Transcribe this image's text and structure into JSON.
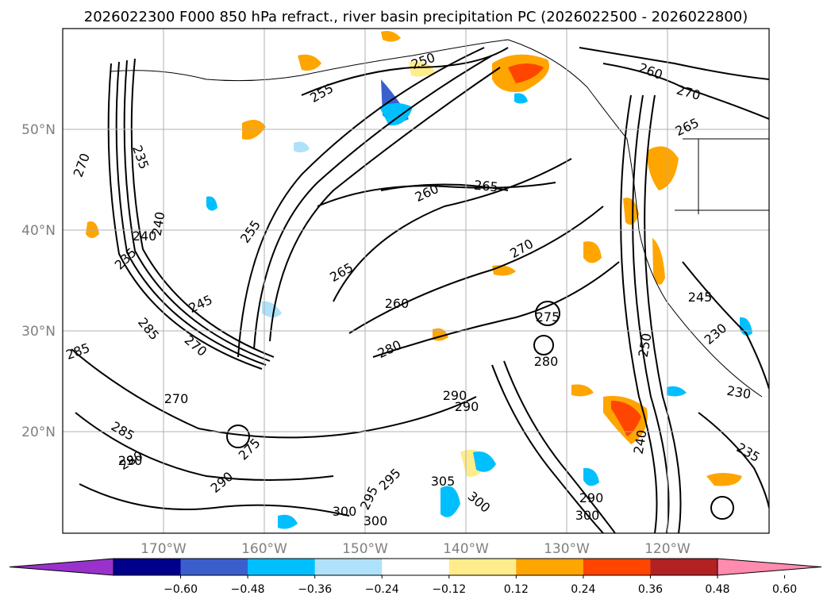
{
  "title": "2026022300 F000 850 hPa refract., river basin precipitation PC (2026022500 - 2026022800)",
  "map": {
    "lat_ticks": [
      "50°N",
      "40°N",
      "30°N",
      "20°N"
    ],
    "lon_ticks": [
      "170°W",
      "160°W",
      "150°W",
      "140°W",
      "130°W",
      "120°W"
    ],
    "grid": true,
    "contour_labels": [
      "250",
      "255",
      "260",
      "265",
      "270",
      "265",
      "260",
      "270",
      "235",
      "240",
      "240",
      "235",
      "255",
      "245",
      "260",
      "265",
      "270",
      "275",
      "280",
      "280",
      "285",
      "285",
      "270",
      "270",
      "280",
      "290",
      "290",
      "285",
      "290",
      "275",
      "290",
      "295",
      "295",
      "300",
      "300",
      "305",
      "300",
      "290",
      "300",
      "240",
      "250",
      "245",
      "230",
      "235",
      "230"
    ],
    "coastline_color": "#000000",
    "contour_color": "#000000"
  },
  "colorbar": {
    "ticks": [
      "−0.60",
      "−0.48",
      "−0.36",
      "−0.24",
      "−0.12",
      "0.12",
      "0.24",
      "0.36",
      "0.48",
      "0.60"
    ],
    "colors": [
      "#9932cc",
      "#00008b",
      "#3a5fcd",
      "#00bfff",
      "#afe1fa",
      "#ffffff",
      "#ffec8b",
      "#ffa500",
      "#ff4500",
      "#b22222",
      "#ff8bae"
    ]
  }
}
